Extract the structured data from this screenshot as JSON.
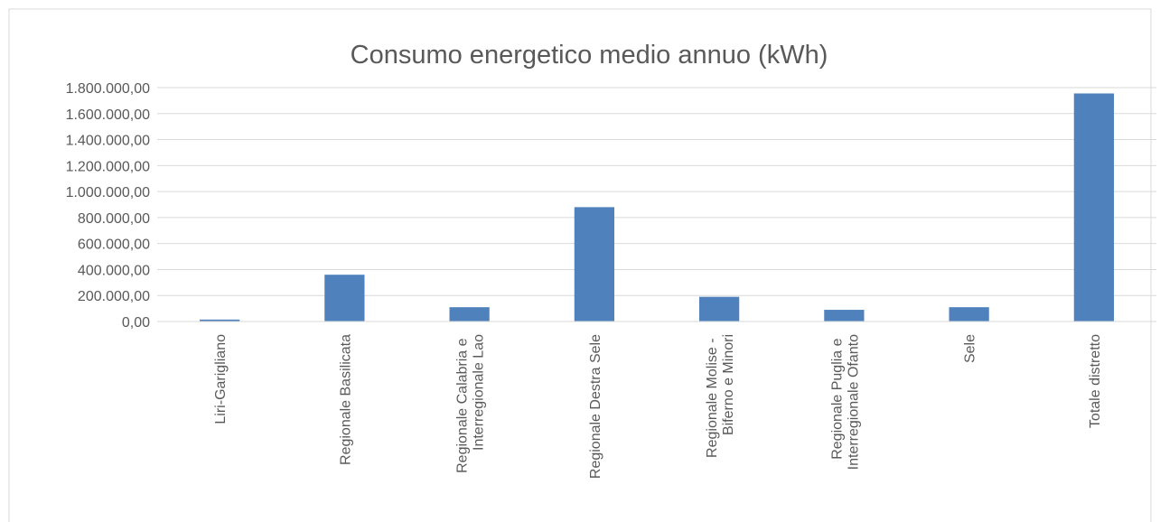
{
  "chart_data": {
    "type": "bar",
    "title": "Consumo energetico medio annuo (kWh)",
    "categories": [
      "Liri-Garigliano",
      "Regionale Basilicata",
      "Regionale Calabria e Interregionale Lao",
      "Regionale Destra Sele",
      "Regionale Molise - Biferno e Minori",
      "Regionale Puglia e Interregionale Ofanto",
      "Sele",
      "Totale distretto"
    ],
    "values": [
      15000,
      360000,
      110000,
      880000,
      190000,
      90000,
      110000,
      1755000
    ],
    "color": "#4f81bd",
    "ylim": [
      0,
      1800000
    ],
    "yticks": [
      {
        "value": 0,
        "label": "0,00"
      },
      {
        "value": 200000,
        "label": "200.000,00"
      },
      {
        "value": 400000,
        "label": "400.000,00"
      },
      {
        "value": 600000,
        "label": "600.000,00"
      },
      {
        "value": 800000,
        "label": "800.000,00"
      },
      {
        "value": 1000000,
        "label": "1.000.000,00"
      },
      {
        "value": 1200000,
        "label": "1.200.000,00"
      },
      {
        "value": 1400000,
        "label": "1.400.000,00"
      },
      {
        "value": 1600000,
        "label": "1.600.000,00"
      },
      {
        "value": 1800000,
        "label": "1.800.000,00"
      }
    ],
    "grid": true
  }
}
